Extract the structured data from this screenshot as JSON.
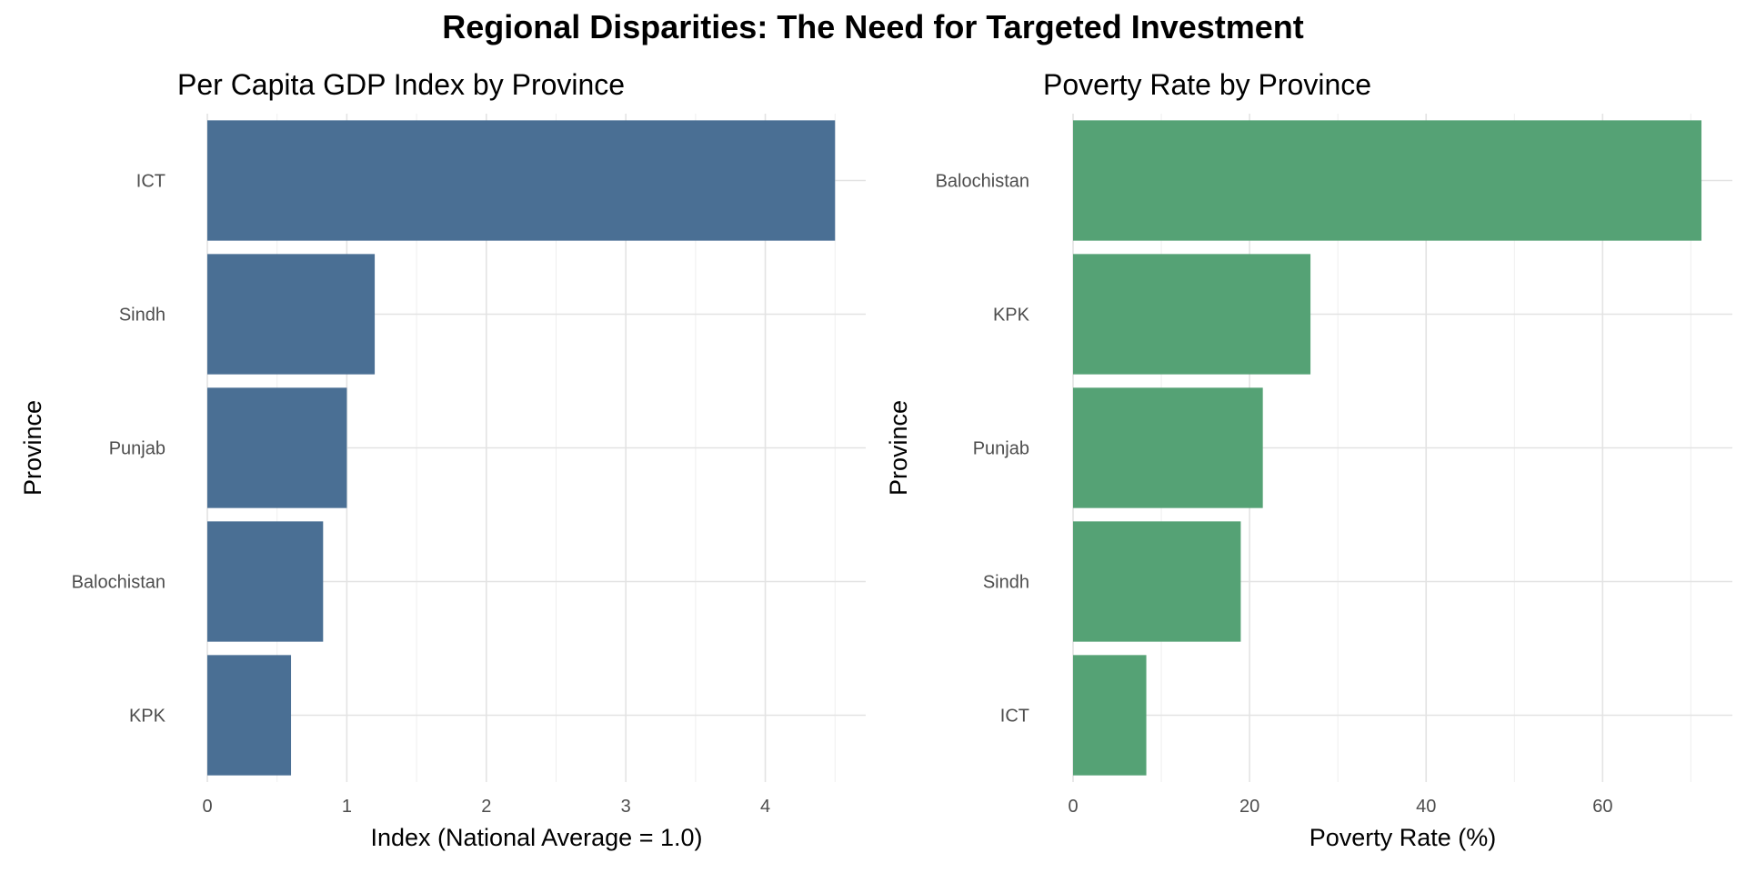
{
  "main_title": "Regional Disparities: The Need for Targeted Investment",
  "chart_data": [
    {
      "type": "bar",
      "orientation": "horizontal",
      "title": "Per Capita GDP Index by Province",
      "xlabel": "Index (National Average = 1.0)",
      "ylabel": "Province",
      "categories": [
        "ICT",
        "Sindh",
        "Punjab",
        "Balochistan",
        "KPK"
      ],
      "values": [
        4.5,
        1.2,
        1.0,
        0.83,
        0.6
      ],
      "xlim": [
        0,
        4.72
      ],
      "xticks": [
        0,
        1,
        2,
        3,
        4
      ],
      "color": "#4a6f94",
      "grid": true
    },
    {
      "type": "bar",
      "orientation": "horizontal",
      "title": "Poverty Rate by Province",
      "xlabel": "Poverty Rate (%)",
      "ylabel": "Province",
      "categories": [
        "Balochistan",
        "KPK",
        "Punjab",
        "Sindh",
        "ICT"
      ],
      "values": [
        71.2,
        26.9,
        21.5,
        19.0,
        8.3
      ],
      "xlim": [
        0,
        74.7
      ],
      "xticks": [
        0,
        20,
        40,
        60
      ],
      "color": "#55a275",
      "grid": true
    }
  ]
}
